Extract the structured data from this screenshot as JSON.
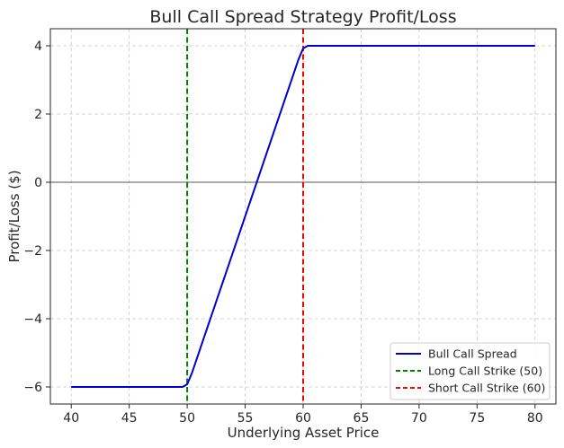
{
  "chart_data": {
    "type": "line",
    "title": "Bull Call Spread Strategy Profit/Loss",
    "xlabel": "Underlying Asset Price",
    "ylabel": "Profit/Loss ($)",
    "xlim": [
      38.2,
      81.8
    ],
    "ylim": [
      -6.5,
      4.5
    ],
    "xticks": [
      40,
      45,
      50,
      55,
      60,
      65,
      70,
      75,
      80
    ],
    "yticks": [
      -6,
      -4,
      -2,
      0,
      2,
      4
    ],
    "ytick_labels": [
      "−6",
      "−4",
      "−2",
      "0",
      "2",
      "4"
    ],
    "grid": true,
    "legend_position": "lower-right",
    "series": [
      {
        "name": "Bull Call Spread",
        "color": "#0000cc",
        "style": "solid",
        "x": [
          40,
          49.6,
          50,
          50.4,
          59.6,
          60,
          60.4,
          80
        ],
        "y": [
          -6,
          -6,
          -5.92,
          -5.6,
          3.6,
          3.92,
          4,
          4
        ]
      }
    ],
    "vertical_lines": [
      {
        "name": "Long Call Strike (50)",
        "x": 50,
        "color": "#008000",
        "style": "dashed"
      },
      {
        "name": "Short Call Strike (60)",
        "x": 60,
        "color": "#ff0000",
        "style": "dashed"
      }
    ],
    "horizontal_lines": [
      {
        "y": 0,
        "color": "#555555"
      }
    ]
  }
}
